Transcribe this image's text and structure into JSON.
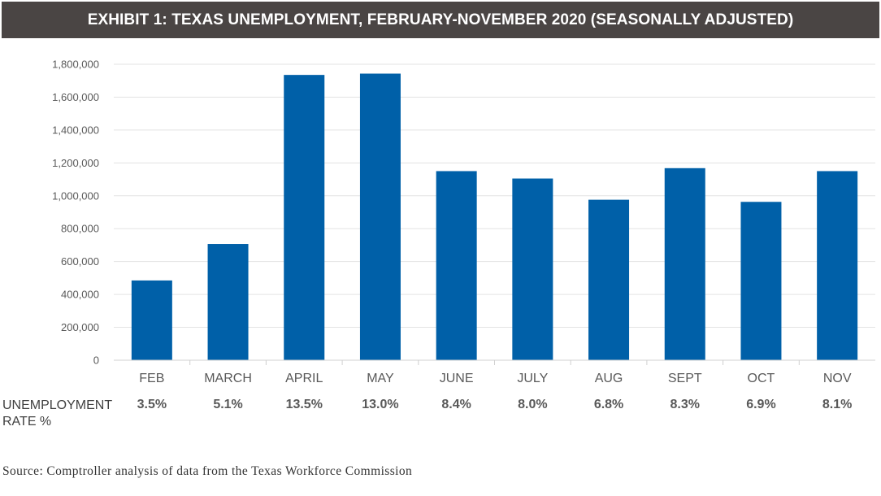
{
  "title": "EXHIBIT 1: TEXAS UNEMPLOYMENT, FEBRUARY-NOVEMBER 2020 (SEASONALLY ADJUSTED)",
  "rate_row_label_line1": "UNEMPLOYMENT",
  "rate_row_label_line2": "RATE %",
  "source": "Source: Comptroller analysis of data from the Texas Workforce Commission",
  "colors": {
    "bar": "#0060a8",
    "title_bg": "#4a4544",
    "grid": "#e3e3e3"
  },
  "chart_data": {
    "type": "bar",
    "title": "EXHIBIT 1: TEXAS UNEMPLOYMENT, FEBRUARY-NOVEMBER 2020 (SEASONALLY ADJUSTED)",
    "xlabel": "",
    "ylabel": "",
    "ylim": [
      0,
      1800000
    ],
    "yticks": [
      0,
      200000,
      400000,
      600000,
      800000,
      1000000,
      1200000,
      1400000,
      1600000,
      1800000
    ],
    "ytick_labels": [
      "0",
      "200,000",
      "400,000",
      "600,000",
      "800,000",
      "1,000,000",
      "1,200,000",
      "1,400,000",
      "1,600,000",
      "1,800,000"
    ],
    "grid": true,
    "legend": "none",
    "categories": [
      "FEB",
      "MARCH",
      "APRIL",
      "MAY",
      "JUNE",
      "JULY",
      "AUG",
      "SEPT",
      "OCT",
      "NOV"
    ],
    "values": [
      485000,
      707000,
      1735000,
      1743000,
      1150000,
      1105000,
      976000,
      1168000,
      963000,
      1150000
    ],
    "rates": [
      "3.5%",
      "5.1%",
      "13.5%",
      "13.0%",
      "8.4%",
      "8.0%",
      "6.8%",
      "8.3%",
      "6.9%",
      "8.1%"
    ]
  }
}
